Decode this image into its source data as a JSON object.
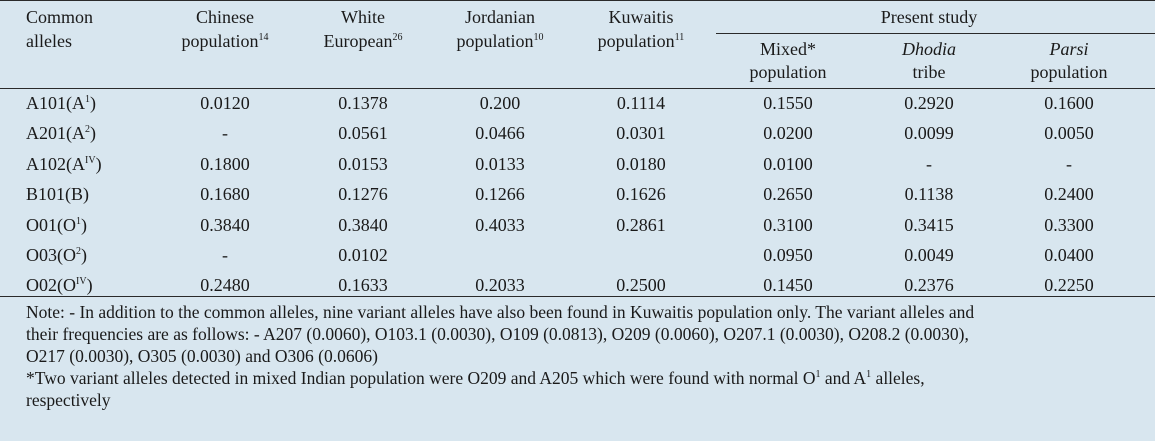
{
  "table": {
    "headers": {
      "alleles": [
        "Common",
        "alleles"
      ],
      "chinese": {
        "line1": "Chinese",
        "line2": "population",
        "sup": "14"
      },
      "white": {
        "line1": "White",
        "line2": "European",
        "sup": "26"
      },
      "jordanian": {
        "line1": "Jordanian",
        "line2": "population",
        "sup": "10"
      },
      "kuwaitis": {
        "line1": "Kuwaitis",
        "line2": "population",
        "sup": "11"
      },
      "present_study": "Present study",
      "mixed": [
        "Mixed*",
        "population"
      ],
      "dhodia": [
        "Dhodia",
        "tribe"
      ],
      "parsi": [
        "Parsi",
        "population"
      ]
    },
    "rows": [
      {
        "allele": "A101(A",
        "sup": "1",
        "close": ")",
        "values": [
          "0.0120",
          "0.1378",
          "0.200",
          "0.1114",
          "0.1550",
          "0.2920",
          "0.1600"
        ]
      },
      {
        "allele": "A201(A",
        "sup": "2",
        "close": ")",
        "values": [
          "-",
          "0.0561",
          "0.0466",
          "0.0301",
          "0.0200",
          "0.0099",
          "0.0050"
        ]
      },
      {
        "allele": "A102(A",
        "sup": "IV",
        "close": ")",
        "values": [
          "0.1800",
          "0.0153",
          "0.0133",
          "0.0180",
          "0.0100",
          "-",
          "-"
        ]
      },
      {
        "allele": "B101(B)",
        "sup": "",
        "close": "",
        "values": [
          "0.1680",
          "0.1276",
          "0.1266",
          "0.1626",
          "0.2650",
          "0.1138",
          "0.2400"
        ]
      },
      {
        "allele": "O01(O",
        "sup": "1",
        "close": ")",
        "values": [
          "0.3840",
          "0.3840",
          "0.4033",
          "0.2861",
          "0.3100",
          "0.3415",
          "0.3300"
        ]
      },
      {
        "allele": "O03(O",
        "sup": "2",
        "close": ")",
        "values": [
          "-",
          "0.0102",
          "",
          "",
          "0.0950",
          "0.0049",
          "0.0400"
        ]
      },
      {
        "allele": "O02(O",
        "sup": "IV",
        "close": ")",
        "values": [
          "0.2480",
          "0.1633",
          "0.2033",
          "0.2500",
          "0.1450",
          "0.2376",
          "0.2250"
        ]
      }
    ],
    "notes": {
      "line1": "Note: - In addition to the common alleles, nine variant alleles have also been found in Kuwaitis population only. The variant alleles and",
      "line2": "their frequencies are as follows: - A207 (0.0060), O103.1 (0.0030), O109 (0.0813), O209 (0.0060), O207.1 (0.0030), O208.2 (0.0030),",
      "line3": "O217 (0.0030), O305 (0.0030) and O306 (0.0606)",
      "star_a": "*Two variant alleles detected in mixed Indian population were O209 and A205 which were found with normal O",
      "star_sup1": "1",
      "star_b": " and A",
      "star_sup2": "1",
      "star_c": " alleles,",
      "line5": "respectively"
    }
  }
}
